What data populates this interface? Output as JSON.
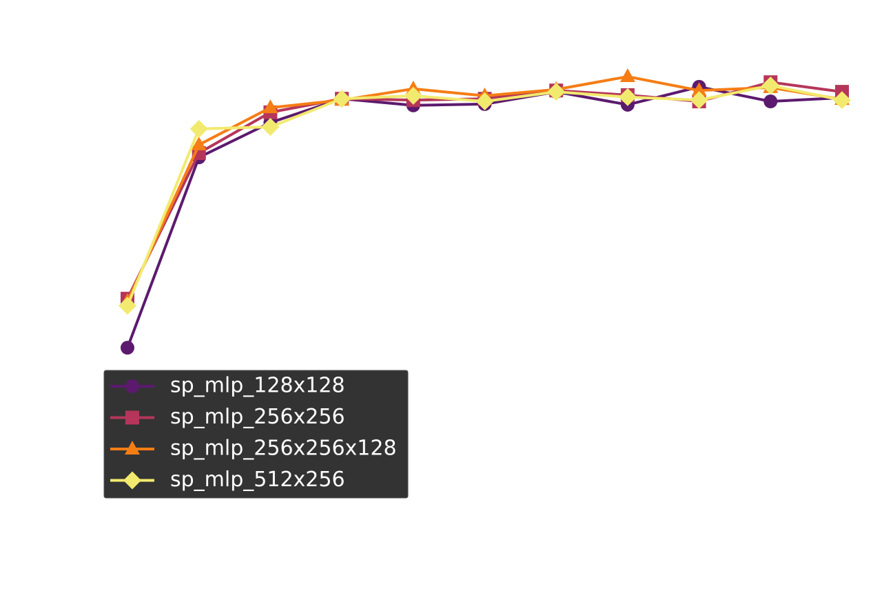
{
  "chart_data": {
    "type": "line",
    "categories": [
      null,
      null,
      null,
      null,
      null,
      null,
      null,
      null,
      null,
      null,
      null
    ],
    "ylim": [
      0,
      1
    ],
    "series": [
      {
        "name": "sp_mlp_128x128",
        "color": "#5c1a6e",
        "marker": "circle",
        "values": [
          0.033,
          0.608,
          0.713,
          0.785,
          0.765,
          0.769,
          0.806,
          0.767,
          0.821,
          0.777,
          0.788
        ]
      },
      {
        "name": "sp_mlp_256x256",
        "color": "#b5365a",
        "marker": "square",
        "values": [
          0.181,
          0.621,
          0.744,
          0.785,
          0.781,
          0.785,
          0.81,
          0.796,
          0.777,
          0.835,
          0.806
        ]
      },
      {
        "name": "sp_mlp_256x256x128",
        "color": "#f57d15",
        "marker": "triangle",
        "values": [
          0.173,
          0.646,
          0.758,
          0.781,
          0.815,
          0.794,
          0.813,
          0.852,
          0.81,
          0.819,
          0.783
        ]
      },
      {
        "name": "sp_mlp_512x256",
        "color": "#f2ea6e",
        "marker": "diamond",
        "values": [
          0.16,
          0.694,
          0.7,
          0.785,
          0.794,
          0.777,
          0.806,
          0.79,
          0.781,
          0.825,
          0.781
        ]
      }
    ]
  }
}
